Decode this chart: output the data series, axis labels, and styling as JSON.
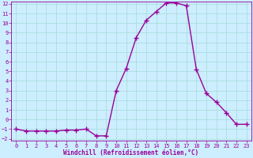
{
  "x": [
    0,
    1,
    2,
    3,
    4,
    5,
    6,
    7,
    8,
    9,
    10,
    11,
    12,
    13,
    14,
    15,
    16,
    17,
    18,
    19,
    20,
    21,
    22,
    23
  ],
  "y": [
    -1,
    -1.2,
    -1.2,
    -1.2,
    -1.2,
    -1.1,
    -1.1,
    -1,
    -1.7,
    -1.7,
    3,
    5.3,
    8.5,
    10.3,
    11.2,
    12.1,
    12.1,
    11.8,
    5.2,
    2.7,
    1.8,
    0.7,
    -0.5,
    -0.5
  ],
  "line_color": "#990099",
  "marker": "+",
  "markersize": 4,
  "markeredgewidth": 1.0,
  "bg_color": "#cceeff",
  "grid_color": "#aadddd",
  "xlabel": "Windchill (Refroidissement éolien,°C)",
  "xlabel_color": "#990099",
  "tick_color": "#990099",
  "ylim": [
    -2,
    12
  ],
  "xlim": [
    -0.5,
    23.5
  ],
  "yticks": [
    -2,
    -1,
    0,
    1,
    2,
    3,
    4,
    5,
    6,
    7,
    8,
    9,
    10,
    11,
    12
  ],
  "xticks": [
    0,
    1,
    2,
    3,
    4,
    5,
    6,
    7,
    8,
    9,
    10,
    11,
    12,
    13,
    14,
    15,
    16,
    17,
    18,
    19,
    20,
    21,
    22,
    23
  ],
  "linewidth": 1.0,
  "tick_fontsize": 5.0,
  "xlabel_fontsize": 5.5
}
